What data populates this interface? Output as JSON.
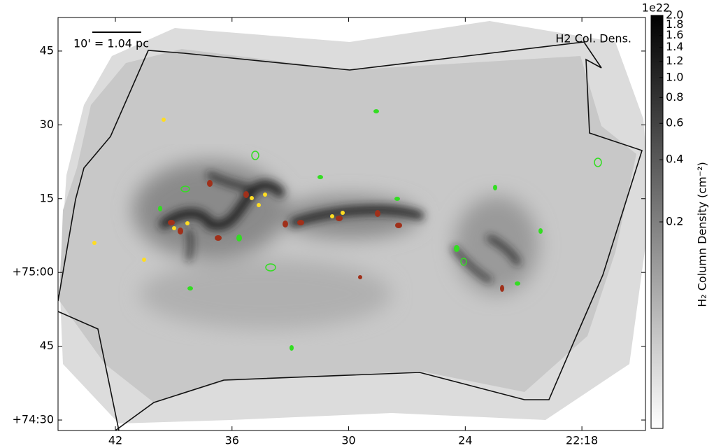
{
  "chart_data": {
    "type": "image",
    "scale_bar_label": "10' = 1.04 pc",
    "map_label": "H2 Col. Dens.",
    "xlim": [
      44.95,
      14.73
    ],
    "xticks": [
      42,
      36,
      30,
      24,
      {
        "value": 18,
        "label": "22:18"
      }
    ],
    "ylim": [
      27.87,
      111.82
    ],
    "yticks": [
      {
        "value": 30,
        "label": "+74:30"
      },
      45,
      {
        "value": 60,
        "label": "+75:00"
      },
      {
        "value": 75,
        "label": "15"
      },
      {
        "value": 90,
        "label": "30"
      },
      {
        "value": 105,
        "label": "45"
      }
    ],
    "colorbar": {
      "label": "H₂ Column Density (cm⁻²)",
      "offset_label": "1e22",
      "scale": "log",
      "cmap": [
        "#ffffff",
        "#000000"
      ],
      "clim": [
        0.02,
        2.0
      ],
      "ticks": [
        0.2,
        0.4,
        0.6,
        0.8,
        {
          "value": 1.0,
          "label": "1.0"
        },
        1.2,
        1.4,
        1.6,
        1.8,
        {
          "value": 2.0,
          "label": "2.0"
        }
      ]
    }
  }
}
